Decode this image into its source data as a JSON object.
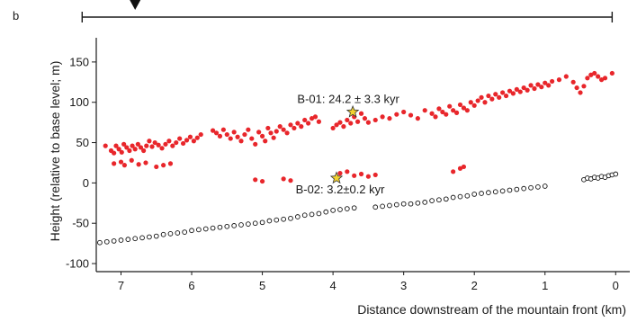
{
  "chart_data": {
    "type": "scatter",
    "panel_label": "b",
    "xlabel": "Distance downstream of the mountain front (km)",
    "ylabel": "Height (relative to base level; m)",
    "xlim": [
      7.35,
      -0.2
    ],
    "ylim": [
      -110,
      180
    ],
    "x_ticks": [
      7,
      6,
      5,
      4,
      3,
      2,
      1,
      0
    ],
    "y_ticks": [
      150,
      100,
      50,
      0,
      -50,
      -100
    ],
    "grid": false,
    "reach_bar": {
      "from": 7.55,
      "to": 0.05,
      "marker_at": 6.8
    },
    "series": [
      {
        "kind": "filled-red",
        "color": "#e8262b",
        "points": [
          [
            7.22,
            46
          ],
          [
            7.14,
            40
          ],
          [
            7.1,
            37
          ],
          [
            7.07,
            46
          ],
          [
            7.03,
            42
          ],
          [
            6.99,
            38
          ],
          [
            6.96,
            48
          ],
          [
            6.92,
            44
          ],
          [
            6.88,
            40
          ],
          [
            6.84,
            46
          ],
          [
            6.8,
            42
          ],
          [
            6.76,
            48
          ],
          [
            6.72,
            44
          ],
          [
            6.68,
            40
          ],
          [
            6.64,
            46
          ],
          [
            6.6,
            52
          ],
          [
            6.56,
            45
          ],
          [
            6.52,
            50
          ],
          [
            6.47,
            47
          ],
          [
            6.42,
            43
          ],
          [
            6.37,
            48
          ],
          [
            6.32,
            52
          ],
          [
            6.27,
            46
          ],
          [
            6.22,
            50
          ],
          [
            6.17,
            55
          ],
          [
            6.12,
            49
          ],
          [
            6.07,
            53
          ],
          [
            6.02,
            57
          ],
          [
            5.97,
            52
          ],
          [
            5.92,
            56
          ],
          [
            5.87,
            60
          ],
          [
            5.7,
            65
          ],
          [
            5.65,
            62
          ],
          [
            5.6,
            58
          ],
          [
            5.55,
            66
          ],
          [
            5.5,
            60
          ],
          [
            5.45,
            55
          ],
          [
            5.4,
            63
          ],
          [
            5.35,
            57
          ],
          [
            5.3,
            52
          ],
          [
            5.25,
            60
          ],
          [
            5.2,
            66
          ],
          [
            5.15,
            55
          ],
          [
            5.1,
            48
          ],
          [
            5.05,
            63
          ],
          [
            5.0,
            58
          ],
          [
            4.96,
            52
          ],
          [
            4.92,
            68
          ],
          [
            4.88,
            62
          ],
          [
            4.84,
            56
          ],
          [
            4.8,
            64
          ],
          [
            4.75,
            70
          ],
          [
            4.7,
            66
          ],
          [
            4.65,
            62
          ],
          [
            4.6,
            72
          ],
          [
            4.55,
            68
          ],
          [
            4.5,
            74
          ],
          [
            4.45,
            70
          ],
          [
            4.4,
            78
          ],
          [
            4.35,
            74
          ],
          [
            4.3,
            80
          ],
          [
            4.25,
            82
          ],
          [
            4.2,
            76
          ],
          [
            4.0,
            68
          ],
          [
            3.95,
            72
          ],
          [
            3.9,
            75
          ],
          [
            3.85,
            70
          ],
          [
            3.8,
            78
          ],
          [
            3.75,
            74
          ],
          [
            3.7,
            82
          ],
          [
            3.65,
            76
          ],
          [
            3.6,
            86
          ],
          [
            3.55,
            80
          ],
          [
            3.5,
            75
          ],
          [
            3.4,
            78
          ],
          [
            3.3,
            82
          ],
          [
            3.2,
            80
          ],
          [
            3.1,
            85
          ],
          [
            3.0,
            88
          ],
          [
            2.9,
            84
          ],
          [
            2.8,
            80
          ],
          [
            2.7,
            90
          ],
          [
            2.6,
            86
          ],
          [
            2.55,
            82
          ],
          [
            2.5,
            92
          ],
          [
            2.45,
            88
          ],
          [
            2.4,
            85
          ],
          [
            2.35,
            95
          ],
          [
            2.3,
            90
          ],
          [
            2.25,
            87
          ],
          [
            2.2,
            97
          ],
          [
            2.15,
            93
          ],
          [
            2.1,
            90
          ],
          [
            2.05,
            100
          ],
          [
            2.0,
            96
          ],
          [
            1.95,
            102
          ],
          [
            1.9,
            106
          ],
          [
            1.85,
            100
          ],
          [
            1.8,
            108
          ],
          [
            1.75,
            104
          ],
          [
            1.7,
            110
          ],
          [
            1.65,
            106
          ],
          [
            1.6,
            112
          ],
          [
            1.55,
            108
          ],
          [
            1.5,
            114
          ],
          [
            1.45,
            111
          ],
          [
            1.4,
            116
          ],
          [
            1.35,
            113
          ],
          [
            1.3,
            118
          ],
          [
            1.25,
            115
          ],
          [
            1.2,
            121
          ],
          [
            1.15,
            117
          ],
          [
            1.1,
            122
          ],
          [
            1.05,
            119
          ],
          [
            1.0,
            124
          ],
          [
            0.95,
            121
          ],
          [
            0.9,
            126
          ],
          [
            0.8,
            128
          ],
          [
            0.7,
            132
          ],
          [
            0.6,
            125
          ],
          [
            0.55,
            118
          ],
          [
            0.5,
            112
          ],
          [
            0.45,
            120
          ],
          [
            0.4,
            130
          ],
          [
            0.35,
            134
          ],
          [
            0.3,
            136
          ],
          [
            0.25,
            132
          ],
          [
            0.2,
            128
          ],
          [
            0.15,
            130
          ],
          [
            0.05,
            136
          ],
          [
            7.1,
            24
          ],
          [
            7.0,
            26
          ],
          [
            6.95,
            22
          ],
          [
            6.85,
            28
          ],
          [
            6.75,
            23
          ],
          [
            6.65,
            25
          ],
          [
            6.5,
            20
          ],
          [
            6.4,
            22
          ],
          [
            6.3,
            24
          ],
          [
            5.1,
            4
          ],
          [
            5.0,
            2
          ],
          [
            4.7,
            5
          ],
          [
            4.6,
            3
          ],
          [
            3.9,
            12
          ],
          [
            3.8,
            14
          ],
          [
            3.7,
            9
          ],
          [
            3.6,
            11
          ],
          [
            3.5,
            8
          ],
          [
            3.4,
            10
          ],
          [
            2.3,
            14
          ],
          [
            2.2,
            18
          ],
          [
            2.15,
            20
          ]
        ]
      },
      {
        "kind": "hollow-black",
        "color": "#111111",
        "points": [
          [
            7.3,
            -74
          ],
          [
            7.2,
            -73
          ],
          [
            7.1,
            -72
          ],
          [
            7.0,
            -71
          ],
          [
            6.9,
            -70
          ],
          [
            6.8,
            -69
          ],
          [
            6.7,
            -68
          ],
          [
            6.6,
            -67
          ],
          [
            6.5,
            -66
          ],
          [
            6.4,
            -64
          ],
          [
            6.3,
            -63
          ],
          [
            6.2,
            -62
          ],
          [
            6.1,
            -61
          ],
          [
            6.0,
            -59
          ],
          [
            5.9,
            -58
          ],
          [
            5.8,
            -57
          ],
          [
            5.7,
            -56
          ],
          [
            5.6,
            -55
          ],
          [
            5.5,
            -54
          ],
          [
            5.4,
            -53
          ],
          [
            5.3,
            -52
          ],
          [
            5.2,
            -51
          ],
          [
            5.1,
            -50
          ],
          [
            5.0,
            -49
          ],
          [
            4.9,
            -47
          ],
          [
            4.8,
            -46
          ],
          [
            4.7,
            -45
          ],
          [
            4.6,
            -44
          ],
          [
            4.5,
            -42
          ],
          [
            4.4,
            -40
          ],
          [
            4.3,
            -39
          ],
          [
            4.2,
            -38
          ],
          [
            4.1,
            -36
          ],
          [
            4.0,
            -34
          ],
          [
            3.9,
            -33
          ],
          [
            3.8,
            -32
          ],
          [
            3.7,
            -31
          ],
          [
            3.4,
            -30
          ],
          [
            3.3,
            -29
          ],
          [
            3.2,
            -28
          ],
          [
            3.1,
            -27
          ],
          [
            3.0,
            -26
          ],
          [
            2.9,
            -26
          ],
          [
            2.8,
            -25
          ],
          [
            2.7,
            -24
          ],
          [
            2.6,
            -22
          ],
          [
            2.5,
            -21
          ],
          [
            2.4,
            -20
          ],
          [
            2.3,
            -18
          ],
          [
            2.2,
            -17
          ],
          [
            2.1,
            -16
          ],
          [
            2.0,
            -14
          ],
          [
            1.9,
            -13
          ],
          [
            1.8,
            -12
          ],
          [
            1.7,
            -11
          ],
          [
            1.6,
            -10
          ],
          [
            1.5,
            -9
          ],
          [
            1.4,
            -8
          ],
          [
            1.3,
            -7
          ],
          [
            1.2,
            -6
          ],
          [
            1.1,
            -5
          ],
          [
            1.0,
            -4
          ],
          [
            0.45,
            4
          ],
          [
            0.4,
            6
          ],
          [
            0.35,
            5
          ],
          [
            0.3,
            7
          ],
          [
            0.25,
            6
          ],
          [
            0.2,
            8
          ],
          [
            0.15,
            7
          ],
          [
            0.1,
            9
          ],
          [
            0.05,
            10
          ],
          [
            0.0,
            11
          ]
        ]
      }
    ],
    "samples": [
      {
        "label": "B-01: 24.2 ± 3.3 kyr",
        "x": 3.72,
        "y": 88,
        "color": "#f2d230"
      },
      {
        "label": "B-02: 3.2±0.2 kyr",
        "x": 3.95,
        "y": 6,
        "color": "#f2d230"
      }
    ]
  }
}
